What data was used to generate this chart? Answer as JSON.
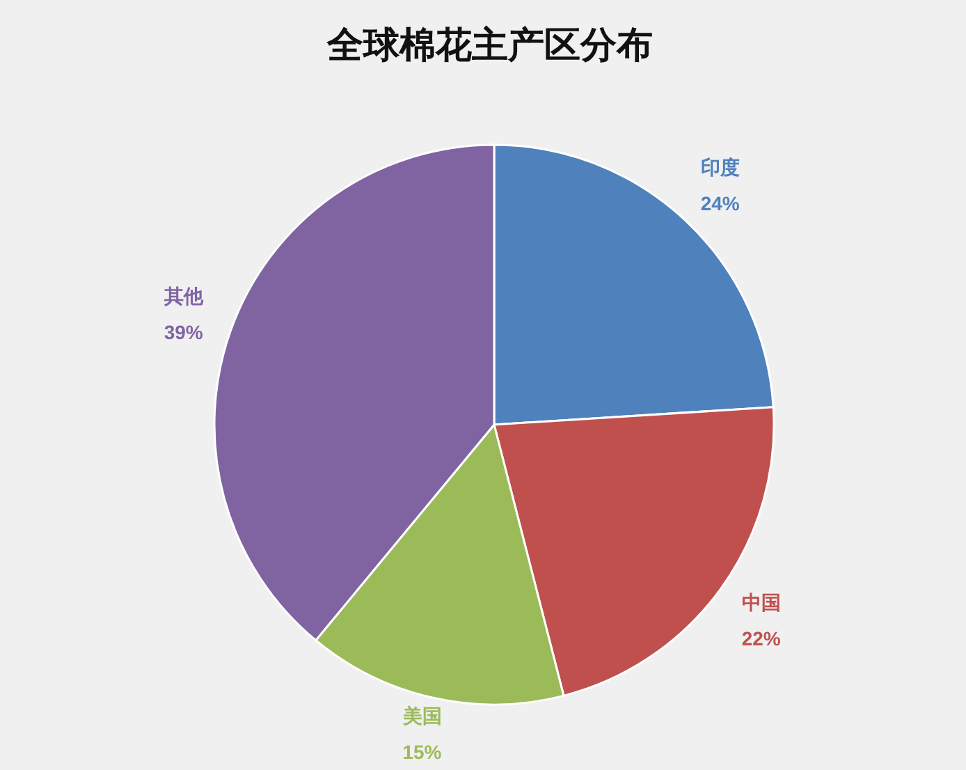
{
  "chart_data": {
    "type": "pie",
    "title": "全球棉花主产区分布",
    "categories": [
      "印度",
      "中国",
      "美国",
      "其他"
    ],
    "values": [
      24,
      22,
      15,
      39
    ],
    "value_labels": [
      "24%",
      "22%",
      "15%",
      "39%"
    ],
    "colors": [
      "#4f81bd",
      "#c0504d",
      "#9bbb59",
      "#8064a2"
    ]
  }
}
